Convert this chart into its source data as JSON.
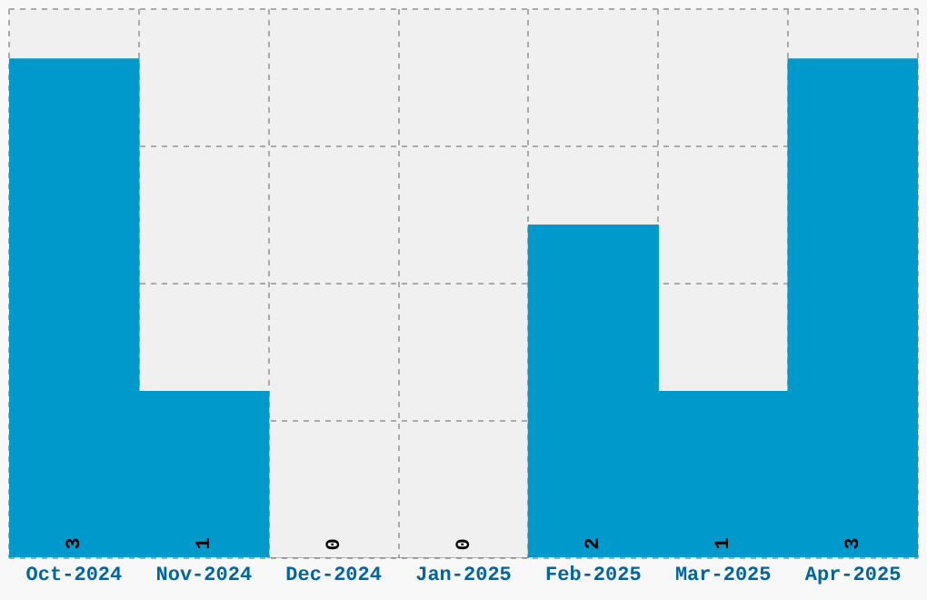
{
  "chart_data": {
    "type": "bar",
    "categories": [
      "Oct-2024",
      "Nov-2024",
      "Dec-2024",
      "Jan-2025",
      "Feb-2025",
      "Mar-2025",
      "Apr-2025"
    ],
    "values": [
      3,
      1,
      0,
      0,
      2,
      1,
      3
    ],
    "color": "#0099cc",
    "data_labels": true,
    "ylim": [
      0,
      3.3
    ],
    "yticks": [
      {
        "value": 0,
        "label": null
      },
      {
        "value": 0.825,
        "label": null
      },
      {
        "value": 1.65,
        "label": null
      },
      {
        "value": 2.475,
        "label": null
      },
      {
        "value": 3.3,
        "label": null
      }
    ],
    "tick_labels": "x",
    "grid": true,
    "legend": false
  }
}
